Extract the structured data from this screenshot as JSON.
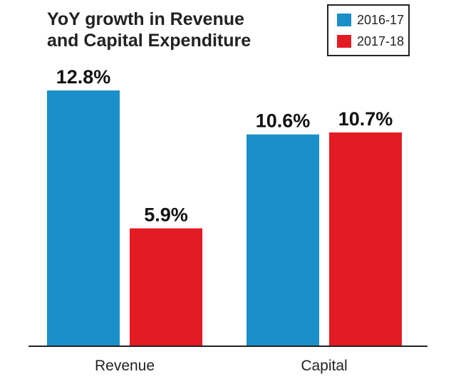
{
  "chart_data": {
    "type": "bar",
    "title": "YoY growth in Revenue and Capital Expenditure",
    "title_lines": [
      "YoY growth in Revenue",
      "and Capital Expenditure"
    ],
    "categories": [
      "Revenue",
      "Capital"
    ],
    "series": [
      {
        "name": "2016-17",
        "color": "#1a8fc9",
        "values": [
          12.8,
          10.6
        ],
        "labels": [
          "12.8%",
          "10.6%"
        ]
      },
      {
        "name": "2017-18",
        "color": "#e31b23",
        "values": [
          5.9,
          10.7
        ],
        "labels": [
          "5.9%",
          "10.7%"
        ]
      }
    ],
    "ylim": [
      0,
      12.8
    ],
    "grid": false,
    "legend_position": "top-right",
    "xlabel": "",
    "ylabel": ""
  }
}
